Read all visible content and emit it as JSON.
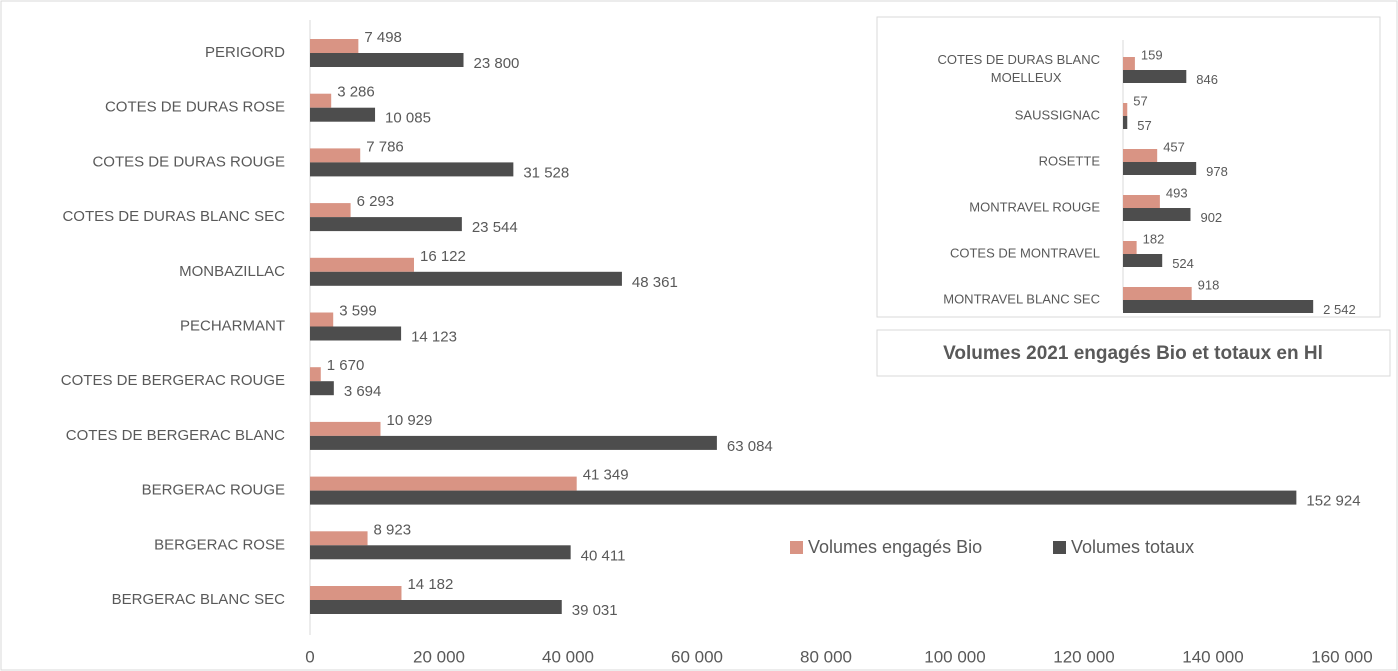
{
  "chart_data": [
    {
      "type": "hbar",
      "title": "Volumes 2021 engagés Bio et totaux en Hl",
      "categories": [
        "PERIGORD",
        "COTES DE DURAS ROSE",
        "COTES DE DURAS ROUGE",
        "COTES DE DURAS BLANC SEC",
        "MONBAZILLAC",
        "PECHARMANT",
        "COTES DE BERGERAC ROUGE",
        "COTES DE BERGERAC BLANC",
        "BERGERAC ROUGE",
        "BERGERAC ROSE",
        "BERGERAC BLANC SEC"
      ],
      "series": [
        {
          "name": "Volumes engagés Bio",
          "color": "#d99484",
          "values": [
            7498,
            3286,
            7786,
            6293,
            16122,
            3599,
            1670,
            10929,
            41349,
            8923,
            14182
          ],
          "value_labels": [
            "7 498",
            "3 286",
            "7 786",
            "6 293",
            "16 122",
            "3 599",
            "1 670",
            "10 929",
            "41 349",
            "8 923",
            "14 182"
          ]
        },
        {
          "name": "Volumes totaux",
          "color": "#4d4d4d",
          "values": [
            23800,
            10085,
            31528,
            23544,
            48361,
            14123,
            3694,
            63084,
            152924,
            40411,
            39031
          ],
          "value_labels": [
            "23 800",
            "10 085",
            "31 528",
            "23 544",
            "48 361",
            "14 123",
            "3 694",
            "63 084",
            "152 924",
            "40 411",
            "39 031"
          ]
        }
      ],
      "xlim": [
        0,
        160000
      ],
      "xticks": [
        0,
        {
          "value": 20000,
          "label": "20 000"
        },
        {
          "value": 40000,
          "label": "40 000"
        },
        {
          "value": 60000,
          "label": "60 000"
        },
        {
          "value": 80000,
          "label": "80 000"
        },
        {
          "value": 100000,
          "label": "100 000"
        },
        {
          "value": 120000,
          "label": "120 000"
        },
        {
          "value": 140000,
          "label": "140 000"
        },
        {
          "value": 160000,
          "label": "160 000"
        }
      ]
    },
    {
      "type": "hbar",
      "categories": [
        "COTES DE DURAS BLANC MOELLEUX",
        "SAUSSIGNAC",
        "ROSETTE",
        "MONTRAVEL ROUGE",
        "COTES DE MONTRAVEL",
        "MONTRAVEL BLANC SEC"
      ],
      "series": [
        {
          "color": "#d99484",
          "values": [
            159,
            57,
            457,
            493,
            182,
            918
          ]
        },
        {
          "color": "#4d4d4d",
          "values": [
            846,
            57,
            978,
            902,
            524,
            2542
          ],
          "value_labels": [
            "846",
            "57",
            "978",
            "902",
            "524",
            "2 542"
          ]
        }
      ],
      "xlim": [
        0,
        2700
      ]
    }
  ]
}
